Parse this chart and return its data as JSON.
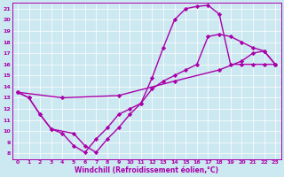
{
  "xlabel": "Windchill (Refroidissement éolien,°C)",
  "xlim": [
    -0.5,
    23.5
  ],
  "ylim": [
    7.5,
    21.5
  ],
  "xticks": [
    0,
    1,
    2,
    3,
    4,
    5,
    6,
    7,
    8,
    9,
    10,
    11,
    12,
    13,
    14,
    15,
    16,
    17,
    18,
    19,
    20,
    21,
    22,
    23
  ],
  "yticks": [
    8,
    9,
    10,
    11,
    12,
    13,
    14,
    15,
    16,
    17,
    18,
    19,
    20,
    21
  ],
  "bg_color": "#cce8f0",
  "line_color": "#aa00aa",
  "line_width": 1.0,
  "marker": "D",
  "marker_size": 2.2,
  "curve1_x": [
    0,
    1,
    2,
    3,
    4,
    5,
    6,
    7,
    8,
    9,
    10,
    11,
    12,
    13,
    14,
    15,
    16,
    17,
    18,
    19,
    20,
    21,
    22,
    23
  ],
  "curve1_y": [
    13.5,
    13.0,
    11.5,
    10.2,
    9.8,
    8.7,
    8.1,
    9.3,
    10.3,
    11.5,
    12.0,
    12.5,
    14.8,
    17.5,
    20.0,
    21.0,
    21.2,
    21.3,
    20.5,
    16.0,
    16.0,
    16.0,
    16.0,
    16.0
  ],
  "curve2_x": [
    0,
    1,
    2,
    3,
    5,
    6,
    7,
    8,
    9,
    10,
    11,
    12,
    13,
    14,
    15,
    16,
    17,
    18,
    19,
    20,
    21,
    22,
    23
  ],
  "curve2_y": [
    13.5,
    13.0,
    11.5,
    10.2,
    9.8,
    8.7,
    8.1,
    9.3,
    10.3,
    11.5,
    12.5,
    13.8,
    14.5,
    15.0,
    15.5,
    16.0,
    18.5,
    18.7,
    18.5,
    18.0,
    17.5,
    17.2,
    16.0
  ],
  "curve3_x": [
    0,
    4,
    9,
    14,
    18,
    20,
    21,
    22,
    23
  ],
  "curve3_y": [
    13.5,
    13.0,
    13.2,
    14.5,
    15.5,
    16.3,
    17.0,
    17.2,
    16.0
  ]
}
